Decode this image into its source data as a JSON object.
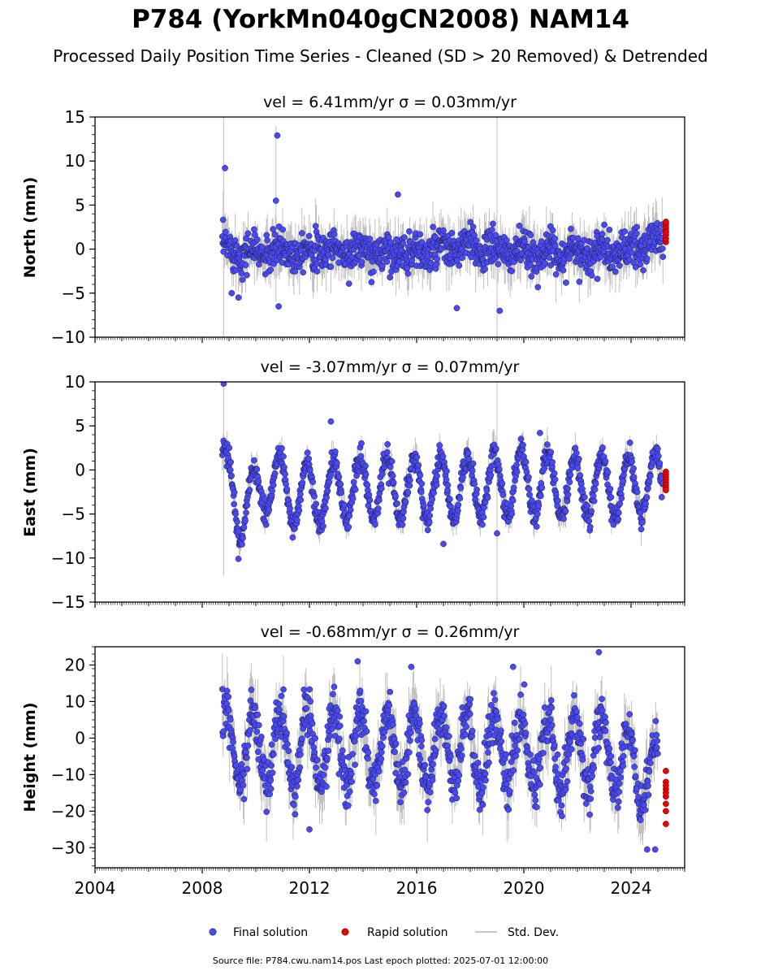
{
  "title": "P784 (YorkMn040gCN2008) NAM14",
  "subtitle": "Processed Daily Position Time Series - Cleaned (SD > 20 Removed) & Detrended",
  "footer": "Source file: P784.cwu.nam14.pos  Last epoch plotted: 2025-07-01 12:00:00",
  "colors": {
    "final": "#4a4af5",
    "final_edge": "#1a1a40",
    "rapid": "#ee0000",
    "std": "#8c8c8c"
  },
  "chart_data": {
    "type": "scatter",
    "x_range": [
      2004,
      2026
    ],
    "x_ticks": [
      "2004",
      "2008",
      "2012",
      "2016",
      "2020",
      "2024"
    ],
    "legend": {
      "placement": "bottom-center",
      "entries": [
        "Final solution",
        "Rapid solution",
        "Std. Dev."
      ]
    },
    "panels": [
      {
        "key": "north",
        "title": "vel = 6.41mm/yr   σ = 0.03mm/yr",
        "ylabel": "North (mm)",
        "ylim": [
          -10,
          15
        ],
        "yticks": [
          "−10",
          "−5",
          "0",
          "5",
          "10",
          "15"
        ],
        "ytick_values": [
          -10,
          -5,
          0,
          5,
          10,
          15
        ],
        "final": {
          "x_start": 2008.75,
          "x_end": 2025.2,
          "step": 0.015,
          "seasonal_amplitude": 0.5,
          "noise": 1.5,
          "baseline": 0,
          "anchor_points": [
            [
              2008.75,
              0.0
            ],
            [
              2010.0,
              -0.5
            ],
            [
              2012.0,
              0.0
            ],
            [
              2014.0,
              -0.3
            ],
            [
              2016.0,
              -0.4
            ],
            [
              2018.0,
              0.2
            ],
            [
              2020.0,
              -0.5
            ],
            [
              2022.0,
              -0.3
            ],
            [
              2024.0,
              -0.3
            ],
            [
              2025.2,
              1.5
            ]
          ]
        },
        "outliers": [
          [
            2008.85,
            9.2
          ],
          [
            2010.8,
            12.9
          ],
          [
            2010.75,
            5.5
          ],
          [
            2015.3,
            6.2
          ],
          [
            2019.1,
            -7.0
          ],
          [
            2017.5,
            -6.7
          ],
          [
            2010.85,
            -6.5
          ],
          [
            2009.1,
            -5.0
          ],
          [
            2009.35,
            -5.5
          ]
        ],
        "rapid": {
          "x": 2025.3,
          "values": [
            0.8,
            1.2,
            1.6,
            2.0,
            2.3,
            2.6,
            2.9,
            3.1,
            1.9
          ]
        },
        "std_spikes": [
          [
            2008.8,
            -10,
            15
          ],
          [
            2010.75,
            -6,
            14
          ],
          [
            2019.0,
            -10,
            15
          ]
        ]
      },
      {
        "key": "east",
        "title": "vel = -3.07mm/yr   σ = 0.07mm/yr",
        "ylabel": "East (mm)",
        "ylim": [
          -15,
          10
        ],
        "yticks": [
          "−15",
          "−10",
          "−5",
          "0",
          "5",
          "10"
        ],
        "ytick_values": [
          -15,
          -10,
          -5,
          0,
          5,
          10
        ],
        "final": {
          "x_start": 2008.75,
          "x_end": 2025.2,
          "step": 0.015,
          "seasonal_amplitude": 3.5,
          "noise": 0.9,
          "baseline": -2.2,
          "anchor_points": [
            [
              2008.75,
              0.0
            ],
            [
              2009.5,
              -5.0
            ],
            [
              2010.5,
              -1.0
            ],
            [
              2011.5,
              -3.0
            ],
            [
              2014.0,
              -2.0
            ],
            [
              2018.0,
              -2.0
            ],
            [
              2020.0,
              -1.5
            ],
            [
              2022.0,
              -2.0
            ],
            [
              2025.2,
              -1.5
            ]
          ]
        },
        "outliers": [
          [
            2008.8,
            9.8
          ],
          [
            2012.8,
            5.5
          ],
          [
            2019.0,
            -7.2
          ],
          [
            2017.0,
            -8.4
          ],
          [
            2009.35,
            -10.1
          ],
          [
            2020.6,
            4.2
          ],
          [
            2024.8,
            2.0
          ]
        ],
        "rapid": {
          "x": 2025.3,
          "values": [
            -0.2,
            -0.5,
            -0.8,
            -1.1,
            -1.4,
            -1.7,
            -2.0,
            -2.3
          ]
        },
        "std_spikes": [
          [
            2008.8,
            -12,
            10
          ],
          [
            2019.0,
            -15,
            10
          ]
        ]
      },
      {
        "key": "height",
        "title": "vel = -0.68mm/yr   σ = 0.26mm/yr",
        "ylabel": "Height (mm)",
        "ylim": [
          -35.5,
          25
        ],
        "yticks": [
          "−30",
          "−20",
          "−10",
          "0",
          "10",
          "20"
        ],
        "ytick_values": [
          -30,
          -20,
          -10,
          0,
          10,
          20
        ],
        "final": {
          "x_start": 2008.75,
          "x_end": 2025.0,
          "step": 0.015,
          "seasonal_amplitude": 10,
          "noise": 4.5,
          "baseline": -4,
          "anchor_points": [
            [
              2008.75,
              -3.0
            ],
            [
              2012.0,
              -3.0
            ],
            [
              2016.0,
              -3.0
            ],
            [
              2020.0,
              -4.0
            ],
            [
              2023.0,
              -4.0
            ],
            [
              2025.0,
              -12.0
            ]
          ]
        },
        "outliers": [
          [
            2013.8,
            21.0
          ],
          [
            2015.8,
            19.5
          ],
          [
            2022.8,
            23.5
          ],
          [
            2019.6,
            19.5
          ],
          [
            2024.6,
            -30.5
          ],
          [
            2024.9,
            -30.5
          ],
          [
            2012.0,
            -25.0
          ]
        ],
        "rapid": {
          "x": 2025.3,
          "values": [
            -9.0,
            -12.0,
            -14.0,
            -16.0,
            -18.0,
            -20.0,
            -23.5,
            -13.0,
            -15.0
          ]
        },
        "std_spikes": []
      }
    ]
  }
}
